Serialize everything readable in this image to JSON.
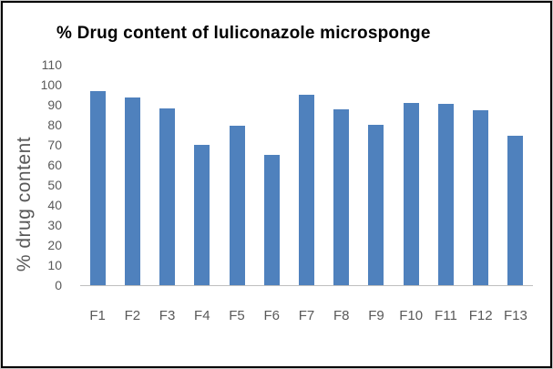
{
  "chart_data": {
    "type": "bar",
    "title": "% Drug content of luliconazole microsponge",
    "xlabel": "",
    "ylabel": "% drug content",
    "categories": [
      "F1",
      "F2",
      "F3",
      "F4",
      "F5",
      "F6",
      "F7",
      "F8",
      "F9",
      "F10",
      "F11",
      "F12",
      "F13"
    ],
    "values": [
      97,
      94,
      88.5,
      70,
      79.5,
      65,
      95,
      88,
      80,
      91,
      90.5,
      87.5,
      74.5
    ],
    "ylim": [
      0,
      110
    ],
    "yticks": [
      0,
      10,
      20,
      30,
      40,
      50,
      60,
      70,
      80,
      90,
      100,
      110
    ],
    "grid": false,
    "legend": null,
    "bar_color": "#4F81BD",
    "axis_line_color": "#BFBFBF",
    "label_color": "#595959",
    "title_color": "#000000"
  }
}
